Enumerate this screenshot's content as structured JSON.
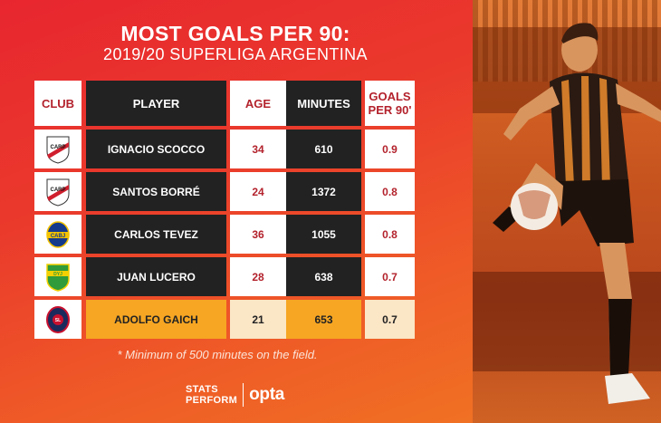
{
  "title": "MOST GOALS PER 90:",
  "subtitle": "2019/20 SUPERLIGA ARGENTINA",
  "headers": {
    "club": "CLUB",
    "player": "PLAYER",
    "age": "AGE",
    "minutes": "MINUTES",
    "goals": "GOALS\nPER 90'"
  },
  "chart_data": {
    "type": "table",
    "title": "MOST GOALS PER 90:",
    "subtitle": "2019/20 SUPERLIGA ARGENTINA",
    "columns": [
      "CLUB",
      "PLAYER",
      "AGE",
      "MINUTES",
      "GOALS PER 90'"
    ],
    "rows": [
      {
        "club_icon": "river-plate-crest-icon",
        "player": "IGNACIO SCOCCO",
        "age": "34",
        "minutes": "610",
        "goals_per_90": "0.9",
        "highlight": false
      },
      {
        "club_icon": "river-plate-crest-icon",
        "player": "SANTOS BORRÉ",
        "age": "24",
        "minutes": "1372",
        "goals_per_90": "0.8",
        "highlight": false
      },
      {
        "club_icon": "boca-juniors-crest-icon",
        "player": "CARLOS TEVEZ",
        "age": "36",
        "minutes": "1055",
        "goals_per_90": "0.8",
        "highlight": false
      },
      {
        "club_icon": "defensa-y-justicia-crest-icon",
        "player": "JUAN LUCERO",
        "age": "28",
        "minutes": "638",
        "goals_per_90": "0.7",
        "highlight": false
      },
      {
        "club_icon": "san-lorenzo-crest-icon",
        "player": "ADOLFO GAICH",
        "age": "21",
        "minutes": "653",
        "goals_per_90": "0.7",
        "highlight": true
      }
    ]
  },
  "footnote": "* Minimum of 500 minutes on the field.",
  "branding": {
    "stats_perform_line1": "STATS",
    "stats_perform_line2": "PERFORM",
    "opta": "opta"
  },
  "colors": {
    "accent_red": "#b3222c",
    "highlight_orange": "#f6a623",
    "dark_cell": "#222222"
  }
}
